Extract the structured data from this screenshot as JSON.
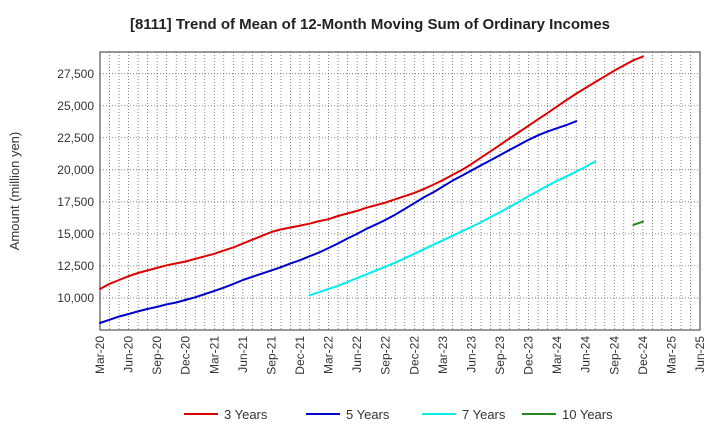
{
  "chart_data": {
    "type": "line",
    "title": "[8111]  Trend of Mean of 12-Month Moving Sum of Ordinary Incomes",
    "xlabel": "",
    "ylabel": "Amount (million yen)",
    "categories": [
      "Mar-20",
      "Jun-20",
      "Sep-20",
      "Dec-20",
      "Mar-21",
      "Jun-21",
      "Sep-21",
      "Dec-21",
      "Mar-22",
      "Jun-22",
      "Sep-22",
      "Dec-22",
      "Mar-23",
      "Jun-23",
      "Sep-23",
      "Dec-23",
      "Mar-24",
      "Jun-24",
      "Sep-24",
      "Dec-24",
      "Mar-25",
      "Jun-25"
    ],
    "y_ticks": [
      "10,000",
      "12,500",
      "15,000",
      "17,500",
      "20,000",
      "22,500",
      "25,000",
      "27,500"
    ],
    "ylim": [
      7500,
      29200
    ],
    "grid": true,
    "series": [
      {
        "name": "3 Years",
        "color": "#dd0000",
        "points": [
          [
            0,
            10700
          ],
          [
            0.33,
            11100
          ],
          [
            0.67,
            11400
          ],
          [
            1,
            11700
          ],
          [
            1.33,
            11950
          ],
          [
            1.67,
            12150
          ],
          [
            2,
            12350
          ],
          [
            2.33,
            12550
          ],
          [
            2.67,
            12700
          ],
          [
            3,
            12850
          ],
          [
            3.33,
            13050
          ],
          [
            3.67,
            13250
          ],
          [
            4,
            13450
          ],
          [
            4.33,
            13700
          ],
          [
            4.67,
            13950
          ],
          [
            5,
            14250
          ],
          [
            5.33,
            14550
          ],
          [
            5.67,
            14850
          ],
          [
            6,
            15150
          ],
          [
            6.33,
            15350
          ],
          [
            6.67,
            15500
          ],
          [
            7,
            15650
          ],
          [
            7.33,
            15800
          ],
          [
            7.67,
            16000
          ],
          [
            8,
            16150
          ],
          [
            8.33,
            16400
          ],
          [
            8.67,
            16600
          ],
          [
            9,
            16800
          ],
          [
            9.33,
            17050
          ],
          [
            9.67,
            17250
          ],
          [
            10,
            17450
          ],
          [
            10.33,
            17700
          ],
          [
            10.67,
            17950
          ],
          [
            11,
            18200
          ],
          [
            11.33,
            18500
          ],
          [
            11.67,
            18850
          ],
          [
            12,
            19200
          ],
          [
            12.33,
            19600
          ],
          [
            12.67,
            20000
          ],
          [
            13,
            20450
          ],
          [
            13.33,
            20950
          ],
          [
            13.67,
            21450
          ],
          [
            14,
            21950
          ],
          [
            14.33,
            22450
          ],
          [
            14.67,
            22950
          ],
          [
            15,
            23450
          ],
          [
            15.33,
            23950
          ],
          [
            15.67,
            24450
          ],
          [
            16,
            24950
          ],
          [
            16.33,
            25450
          ],
          [
            16.67,
            25950
          ],
          [
            17,
            26400
          ],
          [
            17.33,
            26850
          ],
          [
            17.67,
            27300
          ],
          [
            18,
            27750
          ],
          [
            18.33,
            28150
          ],
          [
            18.67,
            28550
          ],
          [
            19,
            28850
          ]
        ]
      },
      {
        "name": "5 Years",
        "color": "#0000cc",
        "points": [
          [
            0,
            8050
          ],
          [
            0.33,
            8300
          ],
          [
            0.67,
            8550
          ],
          [
            1,
            8750
          ],
          [
            1.33,
            8950
          ],
          [
            1.67,
            9150
          ],
          [
            2,
            9300
          ],
          [
            2.33,
            9500
          ],
          [
            2.67,
            9650
          ],
          [
            3,
            9850
          ],
          [
            3.33,
            10050
          ],
          [
            3.67,
            10300
          ],
          [
            4,
            10550
          ],
          [
            4.33,
            10800
          ],
          [
            4.67,
            11100
          ],
          [
            5,
            11400
          ],
          [
            5.33,
            11650
          ],
          [
            5.67,
            11900
          ],
          [
            6,
            12150
          ],
          [
            6.33,
            12400
          ],
          [
            6.67,
            12700
          ],
          [
            7,
            12950
          ],
          [
            7.33,
            13250
          ],
          [
            7.67,
            13550
          ],
          [
            8,
            13900
          ],
          [
            8.33,
            14250
          ],
          [
            8.67,
            14650
          ],
          [
            9,
            15000
          ],
          [
            9.33,
            15400
          ],
          [
            9.67,
            15750
          ],
          [
            10,
            16100
          ],
          [
            10.33,
            16500
          ],
          [
            10.67,
            16950
          ],
          [
            11,
            17400
          ],
          [
            11.33,
            17850
          ],
          [
            11.67,
            18250
          ],
          [
            12,
            18700
          ],
          [
            12.33,
            19150
          ],
          [
            12.67,
            19550
          ],
          [
            13,
            19950
          ],
          [
            13.33,
            20350
          ],
          [
            13.67,
            20750
          ],
          [
            14,
            21150
          ],
          [
            14.33,
            21550
          ],
          [
            14.67,
            21950
          ],
          [
            15,
            22350
          ],
          [
            15.33,
            22700
          ],
          [
            15.67,
            23000
          ],
          [
            16,
            23250
          ],
          [
            16.33,
            23500
          ],
          [
            16.67,
            23800
          ]
        ]
      },
      {
        "name": "7 Years",
        "color": "#00eeee",
        "points": [
          [
            0,
            10200
          ],
          [
            0.33,
            10450
          ],
          [
            0.67,
            10700
          ],
          [
            1,
            10950
          ],
          [
            1.33,
            11250
          ],
          [
            1.67,
            11550
          ],
          [
            2,
            11850
          ],
          [
            2.33,
            12150
          ],
          [
            2.67,
            12450
          ],
          [
            3,
            12750
          ],
          [
            3.33,
            13100
          ],
          [
            3.67,
            13450
          ],
          [
            4,
            13800
          ],
          [
            4.33,
            14150
          ],
          [
            4.67,
            14500
          ],
          [
            5,
            14850
          ],
          [
            5.33,
            15200
          ],
          [
            5.67,
            15550
          ],
          [
            6,
            15900
          ],
          [
            6.33,
            16300
          ],
          [
            6.67,
            16700
          ],
          [
            7,
            17100
          ],
          [
            7.33,
            17500
          ],
          [
            7.67,
            17950
          ],
          [
            8,
            18350
          ],
          [
            8.33,
            18750
          ],
          [
            8.67,
            19150
          ],
          [
            9,
            19500
          ],
          [
            9.33,
            19850
          ],
          [
            9.67,
            20250
          ],
          [
            10,
            20650
          ]
        ]
      },
      {
        "name": "10 Years",
        "color": "#228822",
        "points": [
          [
            0,
            15700
          ],
          [
            0.33,
            15950
          ]
        ]
      }
    ],
    "series_start_index": {
      "3 Years": 0,
      "5 Years": 0,
      "7 Years": 7.33,
      "10 Years": 18.67
    }
  }
}
